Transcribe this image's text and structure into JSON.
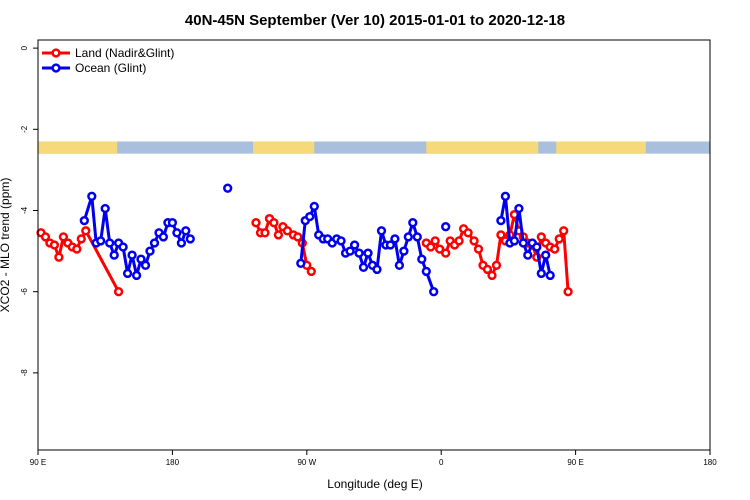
{
  "chart_data": {
    "type": "line",
    "title": "40N-45N September (Ver 10)   2015-01-01 to 2020-12-18",
    "xlabel": "Longitude (deg E)",
    "ylabel": "XCO2 - MLO trend (ppm)",
    "x_range": [
      90,
      540
    ],
    "ylim": [
      -9.9,
      0.2
    ],
    "x_ticks": [
      {
        "value": 90,
        "label": "90 E"
      },
      {
        "value": 180,
        "label": "180"
      },
      {
        "value": 270,
        "label": "90 W"
      },
      {
        "value": 360,
        "label": "0"
      },
      {
        "value": 450,
        "label": "90 E"
      },
      {
        "value": 540,
        "label": "180"
      }
    ],
    "y_ticks": [
      {
        "value": 0,
        "label": "0"
      },
      {
        "value": -2,
        "label": "-2"
      },
      {
        "value": -4,
        "label": "-4"
      },
      {
        "value": -6,
        "label": "-6"
      },
      {
        "value": -8,
        "label": "-8"
      }
    ],
    "land_mask_band": {
      "y_range": [
        -2.3,
        -2.6
      ],
      "land_color": "#f5d97a",
      "ocean_color": "#a9bfde",
      "land_segments": [
        [
          90,
          143
        ],
        [
          234,
          275
        ],
        [
          350,
          425
        ],
        [
          437,
          497
        ]
      ]
    },
    "legend": {
      "position": "top-left"
    },
    "series": [
      {
        "name": "Land (Nadir&Glint)",
        "color": "#ff0000",
        "segments": [
          [
            [
              92,
              -4.55
            ],
            [
              95,
              -4.65
            ],
            [
              98,
              -4.8
            ],
            [
              101,
              -4.85
            ],
            [
              104,
              -5.15
            ],
            [
              107,
              -4.65
            ],
            [
              110,
              -4.8
            ],
            [
              113,
              -4.9
            ],
            [
              116,
              -4.95
            ],
            [
              119,
              -4.7
            ],
            [
              122,
              -4.5
            ],
            [
              144,
              -6.0
            ]
          ],
          [
            [
              236,
              -4.3
            ],
            [
              239,
              -4.55
            ],
            [
              242,
              -4.55
            ],
            [
              245,
              -4.2
            ],
            [
              248,
              -4.3
            ],
            [
              251,
              -4.6
            ],
            [
              254,
              -4.4
            ],
            [
              257,
              -4.5
            ],
            [
              261,
              -4.6
            ],
            [
              264,
              -4.65
            ],
            [
              267,
              -4.8
            ],
            [
              270,
              -5.35
            ],
            [
              273,
              -5.5
            ]
          ],
          [
            [
              350,
              -4.8
            ],
            [
              353,
              -4.9
            ],
            [
              356,
              -4.75
            ],
            [
              359,
              -4.95
            ],
            [
              363,
              -5.05
            ],
            [
              366,
              -4.75
            ],
            [
              369,
              -4.85
            ],
            [
              372,
              -4.75
            ],
            [
              375,
              -4.45
            ],
            [
              378,
              -4.55
            ],
            [
              382,
              -4.75
            ],
            [
              385,
              -4.95
            ],
            [
              388,
              -5.35
            ],
            [
              391,
              -5.45
            ],
            [
              394,
              -5.6
            ],
            [
              397,
              -5.35
            ],
            [
              400,
              -4.6
            ],
            [
              403,
              -4.75
            ],
            [
              406,
              -4.6
            ],
            [
              409,
              -4.1
            ],
            [
              412,
              -4.5
            ],
            [
              415,
              -4.65
            ],
            [
              418,
              -4.8
            ],
            [
              421,
              -4.85
            ],
            [
              424,
              -5.15
            ],
            [
              427,
              -4.65
            ],
            [
              430,
              -4.8
            ],
            [
              433,
              -4.9
            ],
            [
              436,
              -4.95
            ],
            [
              439,
              -4.7
            ],
            [
              442,
              -4.5
            ],
            [
              445,
              -6.0
            ]
          ]
        ]
      },
      {
        "name": "Ocean (Glint)",
        "color": "#0000ee",
        "segments": [
          [
            [
              121,
              -4.25
            ],
            [
              126,
              -3.65
            ],
            [
              129,
              -4.8
            ],
            [
              132,
              -4.75
            ],
            [
              135,
              -3.95
            ],
            [
              138,
              -4.8
            ],
            [
              141,
              -5.1
            ],
            [
              144,
              -4.8
            ],
            [
              147,
              -4.9
            ],
            [
              150,
              -5.55
            ],
            [
              153,
              -5.1
            ],
            [
              156,
              -5.6
            ],
            [
              159,
              -5.2
            ],
            [
              162,
              -5.35
            ],
            [
              165,
              -5.0
            ],
            [
              168,
              -4.8
            ],
            [
              171,
              -4.55
            ],
            [
              174,
              -4.65
            ],
            [
              177,
              -4.3
            ],
            [
              180,
              -4.3
            ],
            [
              183,
              -4.55
            ],
            [
              186,
              -4.8
            ],
            [
              189,
              -4.5
            ],
            [
              192,
              -4.7
            ]
          ],
          [
            [
              266,
              -5.3
            ],
            [
              269,
              -4.25
            ],
            [
              272,
              -4.15
            ],
            [
              275,
              -3.9
            ],
            [
              278,
              -4.6
            ],
            [
              281,
              -4.7
            ],
            [
              284,
              -4.7
            ],
            [
              287,
              -4.8
            ],
            [
              290,
              -4.7
            ],
            [
              293,
              -4.75
            ],
            [
              296,
              -5.05
            ],
            [
              299,
              -5.0
            ],
            [
              302,
              -4.85
            ],
            [
              305,
              -5.05
            ],
            [
              308,
              -5.4
            ],
            [
              311,
              -5.05
            ],
            [
              314,
              -5.35
            ],
            [
              317,
              -5.45
            ],
            [
              320,
              -4.5
            ],
            [
              323,
              -4.85
            ],
            [
              326,
              -4.85
            ],
            [
              329,
              -4.7
            ],
            [
              332,
              -5.35
            ],
            [
              335,
              -5.0
            ],
            [
              338,
              -4.65
            ],
            [
              341,
              -4.3
            ],
            [
              344,
              -4.65
            ],
            [
              347,
              -5.2
            ],
            [
              350,
              -5.5
            ],
            [
              355,
              -6.0
            ]
          ],
          [
            [
              363,
              -4.4
            ]
          ],
          [
            [
              217,
              -3.45
            ]
          ],
          [
            [
              400,
              -4.25
            ],
            [
              403,
              -3.65
            ],
            [
              406,
              -4.8
            ],
            [
              409,
              -4.75
            ],
            [
              412,
              -3.95
            ],
            [
              415,
              -4.8
            ],
            [
              418,
              -5.1
            ],
            [
              421,
              -4.8
            ],
            [
              424,
              -4.9
            ],
            [
              427,
              -5.55
            ],
            [
              430,
              -5.1
            ],
            [
              433,
              -5.6
            ]
          ]
        ]
      }
    ]
  }
}
